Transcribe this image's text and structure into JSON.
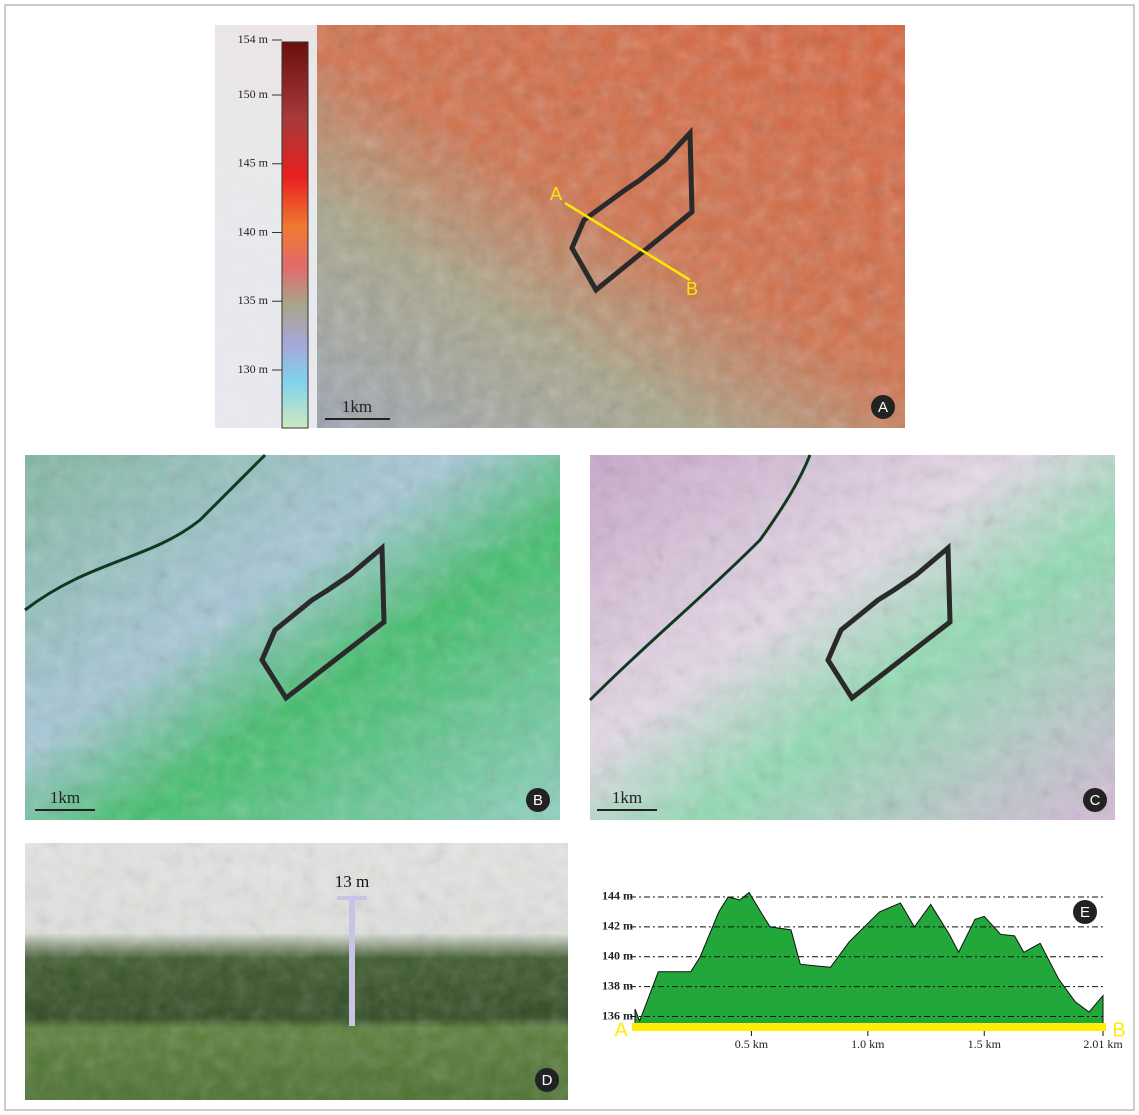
{
  "panel_labels": [
    "A",
    "B",
    "C",
    "D",
    "E"
  ],
  "map_a": {
    "colorbar": {
      "lim": [
        126,
        154
      ],
      "ticks": [
        {
          "value": 154,
          "label": "154 m"
        },
        {
          "value": 150,
          "label": "150 m"
        },
        {
          "value": 145,
          "label": "145 m"
        },
        {
          "value": 140,
          "label": "140 m"
        },
        {
          "value": 135,
          "label": "135 m"
        },
        {
          "value": 130,
          "label": "130 m"
        }
      ]
    },
    "scale_bar": "1km",
    "profile_start": "A",
    "profile_end": "B"
  },
  "map_b": {
    "scale_bar": "1km"
  },
  "map_c": {
    "scale_bar": "1km"
  },
  "photo_d": {
    "height_label": "13 m"
  },
  "chart_data": {
    "type": "area",
    "color": "#22a83a",
    "grid": true,
    "x": [
      0,
      0.02,
      0.1,
      0.24,
      0.28,
      0.36,
      0.4,
      0.45,
      0.49,
      0.54,
      0.58,
      0.67,
      0.71,
      0.77,
      0.84,
      0.92,
      1.05,
      1.14,
      1.2,
      1.27,
      1.35,
      1.39,
      1.46,
      1.5,
      1.57,
      1.63,
      1.67,
      1.74,
      1.82,
      1.89,
      1.95,
      2.01
    ],
    "values": [
      136.5,
      135.7,
      139,
      139,
      140,
      143,
      144,
      143.8,
      144.3,
      143,
      142,
      141.8,
      139.5,
      139.4,
      139.3,
      141,
      143,
      143.6,
      142,
      143.5,
      141.5,
      140.3,
      142.5,
      142.7,
      141.5,
      141.4,
      140.3,
      140.9,
      138.5,
      137,
      136.3,
      137.4
    ],
    "xlim": [
      0,
      2.01
    ],
    "ylim": [
      135.3,
      144.6
    ],
    "xticks": [
      {
        "value": 0.5,
        "label": "0.5 km"
      },
      {
        "value": 1,
        "label": "1.0 km"
      },
      {
        "value": 1.5,
        "label": "1.5 km"
      },
      {
        "value": 2.01,
        "label": "2.01 km"
      }
    ],
    "yticks": [
      {
        "value": 144,
        "label": "144 m"
      },
      {
        "value": 142,
        "label": "142 m"
      },
      {
        "value": 140,
        "label": "140 m"
      },
      {
        "value": 138,
        "label": "138 m"
      },
      {
        "value": 136,
        "label": "136 m"
      }
    ],
    "start_label": "A",
    "end_label": "B"
  }
}
